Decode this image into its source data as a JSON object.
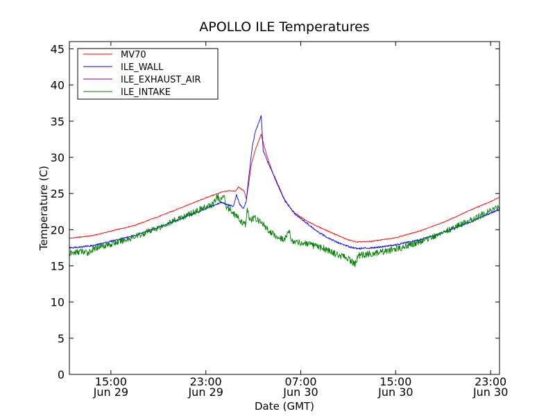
{
  "chart_data": {
    "type": "line",
    "title": "APOLLO ILE Temperatures",
    "xlabel": "Date (GMT)",
    "ylabel": "Temperature (C)",
    "xlim": [
      "2012-06-29T11:30",
      "2012-06-30T23:45"
    ],
    "ylim": [
      0,
      46
    ],
    "yticks": [
      0,
      5,
      10,
      15,
      20,
      25,
      30,
      35,
      40,
      45
    ],
    "xticks": [
      {
        "at": "2012-06-29T15:00",
        "time": "15:00",
        "date": "Jun 29"
      },
      {
        "at": "2012-06-29T23:00",
        "time": "23:00",
        "date": "Jun 29"
      },
      {
        "at": "2012-06-30T07:00",
        "time": "07:00",
        "date": "Jun 30"
      },
      {
        "at": "2012-06-30T15:00",
        "time": "15:00",
        "date": "Jun 30"
      },
      {
        "at": "2012-06-30T23:00",
        "time": "23:00",
        "date": "Jun 30"
      }
    ],
    "grid": false,
    "legend_position": "top-left",
    "series": [
      {
        "name": "MV70",
        "color": "#ff0000",
        "points": [
          [
            "2012-06-29T11:30",
            18.8
          ],
          [
            "2012-06-29T13:30",
            19.2
          ],
          [
            "2012-06-29T15:00",
            19.8
          ],
          [
            "2012-06-29T17:00",
            20.6
          ],
          [
            "2012-06-29T19:00",
            21.8
          ],
          [
            "2012-06-29T21:00",
            23.1
          ],
          [
            "2012-06-29T23:00",
            24.4
          ],
          [
            "2012-06-30T00:20",
            25.2
          ],
          [
            "2012-06-30T01:00",
            25.4
          ],
          [
            "2012-06-30T01:30",
            25.3
          ],
          [
            "2012-06-30T01:45",
            25.9
          ],
          [
            "2012-06-30T02:15",
            25.3
          ],
          [
            "2012-06-30T02:25",
            24.2
          ],
          [
            "2012-06-30T02:35",
            26.0
          ],
          [
            "2012-06-30T02:50",
            29.0
          ],
          [
            "2012-06-30T03:10",
            31.0
          ],
          [
            "2012-06-30T03:30",
            32.5
          ],
          [
            "2012-06-30T03:40",
            33.2
          ],
          [
            "2012-06-30T03:55",
            31.5
          ],
          [
            "2012-06-30T04:20",
            29.3
          ],
          [
            "2012-06-30T04:50",
            27.0
          ],
          [
            "2012-06-30T05:30",
            24.5
          ],
          [
            "2012-06-30T06:20",
            22.5
          ],
          [
            "2012-06-30T07:30",
            21.2
          ],
          [
            "2012-06-30T08:30",
            20.4
          ],
          [
            "2012-06-30T10:00",
            19.3
          ],
          [
            "2012-06-30T11:00",
            18.6
          ],
          [
            "2012-06-30T11:45",
            18.3
          ],
          [
            "2012-06-30T13:00",
            18.4
          ],
          [
            "2012-06-30T15:00",
            18.9
          ],
          [
            "2012-06-30T17:00",
            19.8
          ],
          [
            "2012-06-30T19:00",
            21.0
          ],
          [
            "2012-06-30T21:00",
            22.5
          ],
          [
            "2012-06-30T23:00",
            23.9
          ],
          [
            "2012-06-30T23:45",
            24.5
          ]
        ]
      },
      {
        "name": "ILE_WALL",
        "color": "#0000ff",
        "points": [
          [
            "2012-06-29T11:30",
            17.5
          ],
          [
            "2012-06-29T13:30",
            17.8
          ],
          [
            "2012-06-29T15:00",
            18.4
          ],
          [
            "2012-06-29T17:00",
            19.2
          ],
          [
            "2012-06-29T19:00",
            20.3
          ],
          [
            "2012-06-29T21:00",
            21.6
          ],
          [
            "2012-06-29T23:00",
            22.9
          ],
          [
            "2012-06-30T00:20",
            23.8
          ],
          [
            "2012-06-30T00:45",
            23.5
          ],
          [
            "2012-06-30T01:20",
            23.2
          ],
          [
            "2012-06-30T01:35",
            24.8
          ],
          [
            "2012-06-30T01:50",
            23.6
          ],
          [
            "2012-06-30T02:10",
            22.9
          ],
          [
            "2012-06-30T02:25",
            24.0
          ],
          [
            "2012-06-30T02:40",
            28.0
          ],
          [
            "2012-06-30T02:55",
            31.5
          ],
          [
            "2012-06-30T03:10",
            33.5
          ],
          [
            "2012-06-30T03:25",
            34.6
          ],
          [
            "2012-06-30T03:40",
            35.7
          ],
          [
            "2012-06-30T03:50",
            31.0
          ],
          [
            "2012-06-30T04:10",
            29.5
          ],
          [
            "2012-06-30T04:30",
            28.4
          ],
          [
            "2012-06-30T05:00",
            26.5
          ],
          [
            "2012-06-30T05:40",
            24.0
          ],
          [
            "2012-06-30T06:30",
            22.2
          ],
          [
            "2012-06-30T07:30",
            20.9
          ],
          [
            "2012-06-30T08:30",
            19.6
          ],
          [
            "2012-06-30T10:00",
            18.3
          ],
          [
            "2012-06-30T11:00",
            17.7
          ],
          [
            "2012-06-30T11:45",
            17.4
          ],
          [
            "2012-06-30T13:00",
            17.5
          ],
          [
            "2012-06-30T15:00",
            17.9
          ],
          [
            "2012-06-30T17:00",
            18.6
          ],
          [
            "2012-06-30T19:00",
            19.6
          ],
          [
            "2012-06-30T21:00",
            20.9
          ],
          [
            "2012-06-30T23:00",
            22.3
          ],
          [
            "2012-06-30T23:45",
            22.8
          ]
        ]
      },
      {
        "name": "ILE_EXHAUST_AIR",
        "color": "#800080",
        "points": []
      },
      {
        "name": "ILE_INTAKE",
        "color": "#008000",
        "points": [
          [
            "2012-06-29T11:30",
            16.7
          ],
          [
            "2012-06-29T12:30",
            17.0
          ],
          [
            "2012-06-29T13:00",
            16.8
          ],
          [
            "2012-06-29T14:00",
            17.7
          ],
          [
            "2012-06-29T15:00",
            18.0
          ],
          [
            "2012-06-29T17:00",
            19.0
          ],
          [
            "2012-06-29T19:00",
            20.3
          ],
          [
            "2012-06-29T21:00",
            21.7
          ],
          [
            "2012-06-29T22:30",
            22.8
          ],
          [
            "2012-06-29T23:30",
            23.4
          ],
          [
            "2012-06-30T00:00",
            24.6
          ],
          [
            "2012-06-30T00:15",
            23.9
          ],
          [
            "2012-06-30T00:30",
            24.9
          ],
          [
            "2012-06-30T00:45",
            23.2
          ],
          [
            "2012-06-30T01:10",
            22.6
          ],
          [
            "2012-06-30T01:40",
            21.7
          ],
          [
            "2012-06-30T02:00",
            21.0
          ],
          [
            "2012-06-30T02:20",
            20.7
          ],
          [
            "2012-06-30T02:30",
            22.9
          ],
          [
            "2012-06-30T02:40",
            21.3
          ],
          [
            "2012-06-30T03:10",
            21.6
          ],
          [
            "2012-06-30T03:40",
            21.0
          ],
          [
            "2012-06-30T04:10",
            20.1
          ],
          [
            "2012-06-30T05:00",
            19.0
          ],
          [
            "2012-06-30T05:40",
            18.6
          ],
          [
            "2012-06-30T06:00",
            20.1
          ],
          [
            "2012-06-30T06:10",
            18.5
          ],
          [
            "2012-06-30T07:00",
            18.2
          ],
          [
            "2012-06-30T08:00",
            17.8
          ],
          [
            "2012-06-30T09:00",
            17.4
          ],
          [
            "2012-06-30T10:00",
            16.6
          ],
          [
            "2012-06-30T11:00",
            16.0
          ],
          [
            "2012-06-30T11:35",
            15.2
          ],
          [
            "2012-06-30T11:50",
            16.4
          ],
          [
            "2012-06-30T13:00",
            16.7
          ],
          [
            "2012-06-30T15:00",
            17.3
          ],
          [
            "2012-06-30T17:00",
            18.3
          ],
          [
            "2012-06-30T19:00",
            19.6
          ],
          [
            "2012-06-30T21:00",
            21.1
          ],
          [
            "2012-06-30T23:00",
            22.6
          ],
          [
            "2012-06-30T23:45",
            23.3
          ]
        ]
      }
    ]
  }
}
